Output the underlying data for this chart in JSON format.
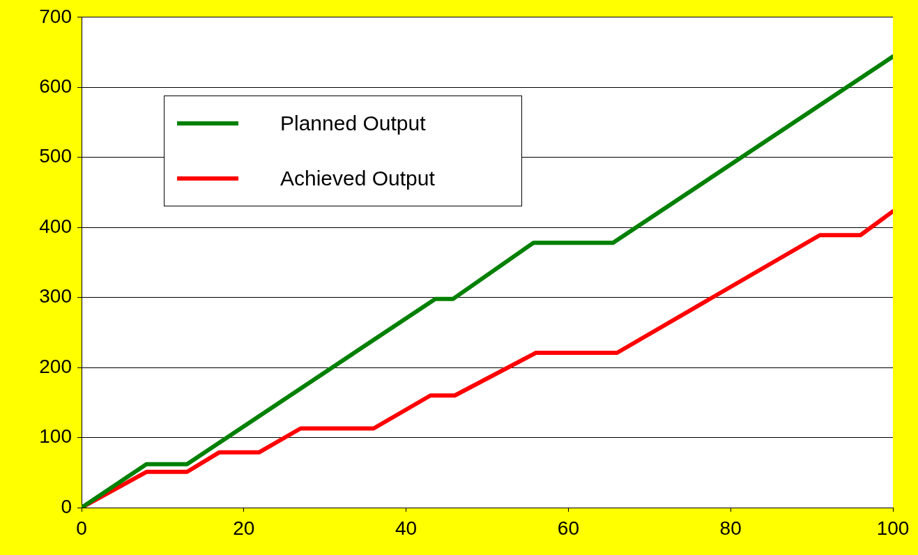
{
  "chart_data": {
    "type": "line",
    "series": [
      {
        "name": "Planned Output",
        "color": "#008000",
        "x": [
          0,
          8,
          13,
          43.6,
          45.8,
          55.7,
          65.5,
          100
        ],
        "values": [
          0,
          62,
          62,
          298,
          298,
          378,
          378,
          644
        ]
      },
      {
        "name": "Achieved Output",
        "color": "#ff0000",
        "x": [
          0,
          8,
          13,
          17,
          21.9,
          27,
          36,
          43,
          46,
          56,
          66,
          91,
          96,
          100
        ],
        "values": [
          0,
          51,
          51,
          79,
          79,
          113,
          113,
          160,
          160,
          221,
          221,
          389,
          389,
          423
        ]
      }
    ],
    "xlim": [
      0,
      100
    ],
    "xticks": [
      0,
      20,
      40,
      60,
      80,
      100
    ],
    "ylim": [
      0,
      700
    ],
    "yticks": [
      0,
      100,
      200,
      300,
      400,
      500,
      600,
      700
    ],
    "grid": "y",
    "legend": "top left",
    "marker": "none",
    "line_style": "solid"
  }
}
